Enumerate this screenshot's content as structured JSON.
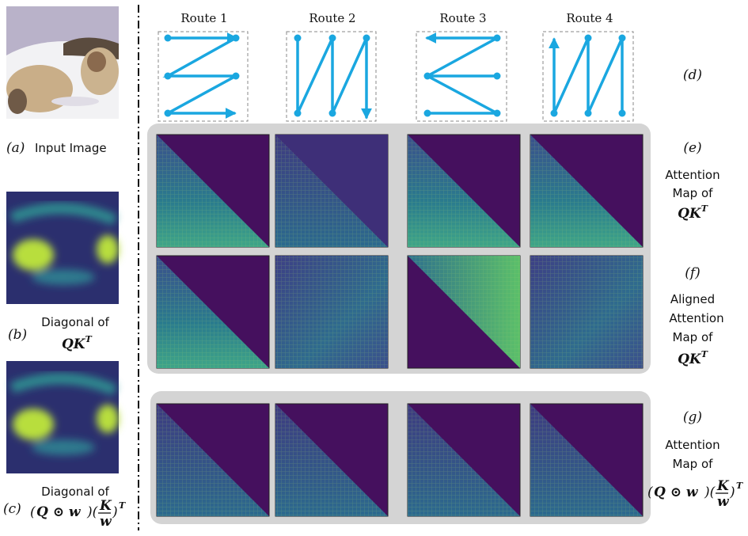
{
  "routes": [
    "Route 1",
    "Route 2",
    "Route 3",
    "Route 4"
  ],
  "left": {
    "a": {
      "tag": "(a)",
      "text": "Input Image"
    },
    "b": {
      "tag": "(b)",
      "text": "Diagonal of",
      "formula": "QK",
      "sup": "T"
    },
    "c": {
      "tag": "(c)",
      "text": "Diagonal of",
      "open": "(",
      "q": "Q ⊙ w",
      "close": ")(",
      "num": "K",
      "den": "w",
      "end": ")",
      "sup": "T"
    }
  },
  "right": {
    "d": {
      "tag": "(d)"
    },
    "e": {
      "tag": "(e)",
      "lines": [
        "Attention",
        "Map of"
      ],
      "formula": "QK",
      "sup": "T"
    },
    "f": {
      "tag": "(f)",
      "lines": [
        "Aligned",
        "Attention",
        "Map of"
      ],
      "formula": "QK",
      "sup": "T"
    },
    "g": {
      "tag": "(g)",
      "lines": [
        "Attention",
        "Map of"
      ],
      "open": "(",
      "q": "Q ⊙ w",
      "close": ")(",
      "num": "K",
      "den": "w",
      "end": ")",
      "sup": "T"
    }
  }
}
